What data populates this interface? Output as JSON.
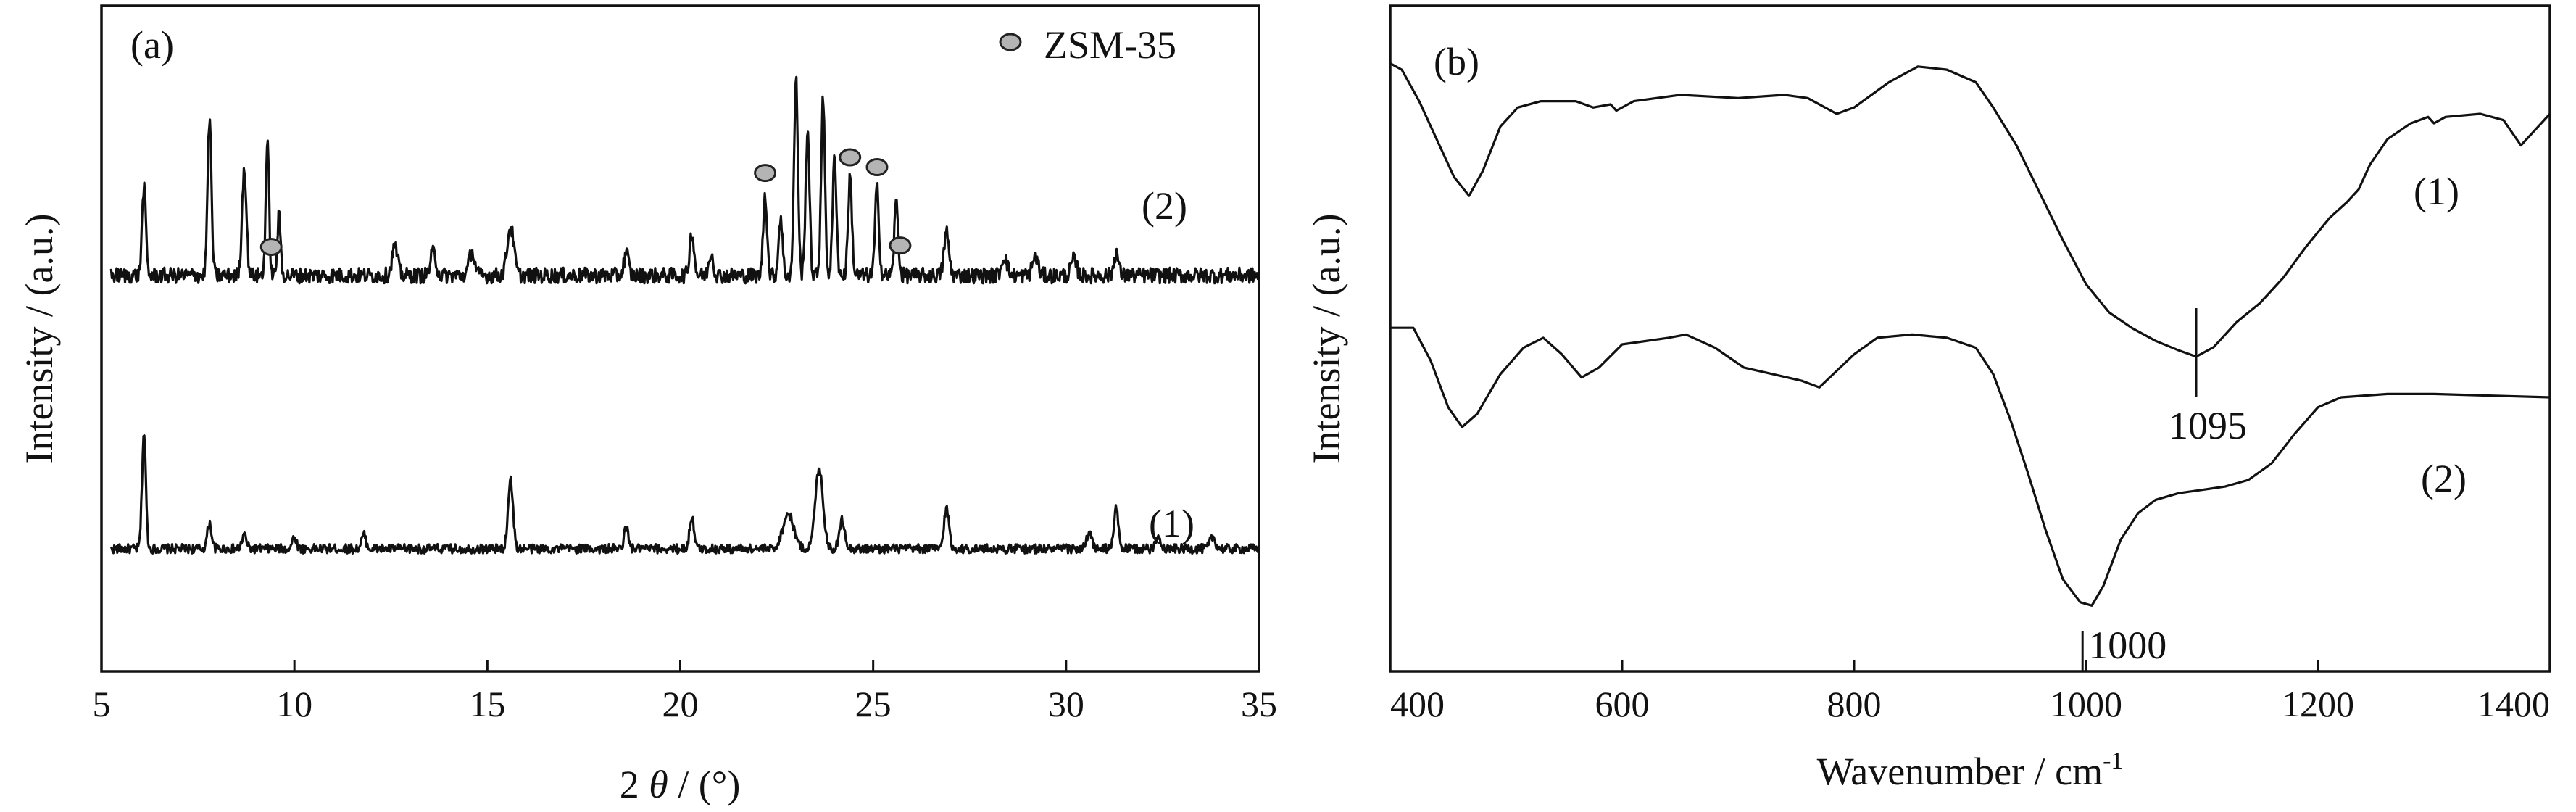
{
  "chart_data": [
    {
      "type": "line",
      "panel_label": "(a)",
      "xlabel_prefix": "2 ",
      "xlabel_symbol": "θ",
      "xlabel_suffix": " / (°)",
      "ylabel": "Intensity / (a.u.)",
      "xlim": [
        5,
        35
      ],
      "xticks": [
        5,
        10,
        15,
        20,
        25,
        30,
        35
      ],
      "legend": {
        "marker": "gray-circle",
        "label": "ZSM-35",
        "position": "top-right"
      },
      "marker_color": "#b4b4b4",
      "marker_positions": [
        9.4,
        22.2,
        24.4,
        25.1,
        25.7
      ],
      "series": [
        {
          "label": "(1)",
          "offset": 0,
          "peaks": [
            [
              6.1,
              1.0,
              0.07
            ],
            [
              7.8,
              0.22,
              0.08
            ],
            [
              8.7,
              0.12,
              0.08
            ],
            [
              10.0,
              0.1,
              0.08
            ],
            [
              11.8,
              0.12,
              0.08
            ],
            [
              15.6,
              0.6,
              0.09
            ],
            [
              18.6,
              0.18,
              0.08
            ],
            [
              20.3,
              0.28,
              0.08
            ],
            [
              22.8,
              0.3,
              0.2
            ],
            [
              23.6,
              0.7,
              0.14
            ],
            [
              24.2,
              0.25,
              0.1
            ],
            [
              26.9,
              0.35,
              0.09
            ],
            [
              30.6,
              0.12,
              0.1
            ],
            [
              31.3,
              0.35,
              0.08
            ],
            [
              32.4,
              0.1,
              0.1
            ],
            [
              33.8,
              0.1,
              0.1
            ]
          ]
        },
        {
          "label": "(2)",
          "offset": 1,
          "peaks": [
            [
              6.1,
              0.45,
              0.07
            ],
            [
              7.8,
              0.8,
              0.07
            ],
            [
              8.7,
              0.55,
              0.08
            ],
            [
              9.3,
              0.68,
              0.06
            ],
            [
              9.6,
              0.3,
              0.06
            ],
            [
              12.6,
              0.15,
              0.1
            ],
            [
              13.6,
              0.12,
              0.1
            ],
            [
              14.6,
              0.12,
              0.1
            ],
            [
              15.6,
              0.25,
              0.12
            ],
            [
              18.6,
              0.12,
              0.08
            ],
            [
              20.3,
              0.22,
              0.08
            ],
            [
              20.8,
              0.12,
              0.08
            ],
            [
              22.2,
              0.42,
              0.07
            ],
            [
              22.6,
              0.3,
              0.07
            ],
            [
              23.0,
              1.0,
              0.07
            ],
            [
              23.3,
              0.75,
              0.07
            ],
            [
              23.7,
              0.9,
              0.07
            ],
            [
              24.0,
              0.6,
              0.07
            ],
            [
              24.4,
              0.5,
              0.07
            ],
            [
              25.1,
              0.45,
              0.07
            ],
            [
              25.6,
              0.38,
              0.07
            ],
            [
              26.9,
              0.22,
              0.09
            ],
            [
              28.4,
              0.1,
              0.1
            ],
            [
              29.2,
              0.1,
              0.1
            ],
            [
              30.2,
              0.08,
              0.1
            ],
            [
              31.3,
              0.12,
              0.08
            ]
          ]
        }
      ]
    },
    {
      "type": "line",
      "panel_label": "(b)",
      "xlabel_main": "Wavenumber / cm",
      "xlabel_sup": "-1",
      "ylabel": "Intensity / (a.u.)",
      "xlim": [
        400,
        1400
      ],
      "xticks": [
        400,
        600,
        800,
        1000,
        1200,
        1400
      ],
      "series": [
        {
          "label": "(1)",
          "annotation": "1095",
          "annotation_x": 1095,
          "points": [
            [
              400,
              0.96
            ],
            [
              410,
              0.94
            ],
            [
              425,
              0.84
            ],
            [
              440,
              0.72
            ],
            [
              455,
              0.6
            ],
            [
              468,
              0.54
            ],
            [
              480,
              0.62
            ],
            [
              495,
              0.76
            ],
            [
              510,
              0.82
            ],
            [
              530,
              0.84
            ],
            [
              560,
              0.84
            ],
            [
              575,
              0.82
            ],
            [
              590,
              0.83
            ],
            [
              595,
              0.81
            ],
            [
              610,
              0.84
            ],
            [
              650,
              0.86
            ],
            [
              700,
              0.85
            ],
            [
              740,
              0.86
            ],
            [
              760,
              0.85
            ],
            [
              785,
              0.8
            ],
            [
              800,
              0.82
            ],
            [
              830,
              0.9
            ],
            [
              855,
              0.95
            ],
            [
              880,
              0.94
            ],
            [
              905,
              0.9
            ],
            [
              920,
              0.82
            ],
            [
              940,
              0.7
            ],
            [
              960,
              0.55
            ],
            [
              980,
              0.4
            ],
            [
              1000,
              0.26
            ],
            [
              1020,
              0.17
            ],
            [
              1040,
              0.12
            ],
            [
              1060,
              0.08
            ],
            [
              1080,
              0.05
            ],
            [
              1095,
              0.03
            ],
            [
              1110,
              0.06
            ],
            [
              1130,
              0.14
            ],
            [
              1150,
              0.2
            ],
            [
              1170,
              0.28
            ],
            [
              1190,
              0.38
            ],
            [
              1210,
              0.47
            ],
            [
              1225,
              0.52
            ],
            [
              1235,
              0.56
            ],
            [
              1245,
              0.64
            ],
            [
              1260,
              0.72
            ],
            [
              1280,
              0.77
            ],
            [
              1295,
              0.79
            ],
            [
              1300,
              0.77
            ],
            [
              1310,
              0.79
            ],
            [
              1340,
              0.8
            ],
            [
              1360,
              0.78
            ],
            [
              1375,
              0.7
            ],
            [
              1390,
              0.76
            ],
            [
              1400,
              0.8
            ]
          ]
        },
        {
          "label": "(2)",
          "annotation": "1000",
          "annotation_x": 997,
          "points": [
            [
              400,
              0.96
            ],
            [
              420,
              0.96
            ],
            [
              435,
              0.86
            ],
            [
              450,
              0.72
            ],
            [
              462,
              0.66
            ],
            [
              475,
              0.7
            ],
            [
              495,
              0.82
            ],
            [
              515,
              0.9
            ],
            [
              532,
              0.93
            ],
            [
              548,
              0.88
            ],
            [
              565,
              0.81
            ],
            [
              580,
              0.84
            ],
            [
              600,
              0.91
            ],
            [
              620,
              0.92
            ],
            [
              640,
              0.93
            ],
            [
              655,
              0.94
            ],
            [
              680,
              0.9
            ],
            [
              705,
              0.84
            ],
            [
              730,
              0.82
            ],
            [
              755,
              0.8
            ],
            [
              770,
              0.78
            ],
            [
              785,
              0.83
            ],
            [
              800,
              0.88
            ],
            [
              820,
              0.93
            ],
            [
              850,
              0.94
            ],
            [
              880,
              0.93
            ],
            [
              905,
              0.9
            ],
            [
              920,
              0.82
            ],
            [
              935,
              0.68
            ],
            [
              950,
              0.52
            ],
            [
              965,
              0.35
            ],
            [
              980,
              0.2
            ],
            [
              995,
              0.13
            ],
            [
              1005,
              0.12
            ],
            [
              1015,
              0.18
            ],
            [
              1030,
              0.32
            ],
            [
              1045,
              0.4
            ],
            [
              1060,
              0.44
            ],
            [
              1080,
              0.46
            ],
            [
              1100,
              0.47
            ],
            [
              1120,
              0.48
            ],
            [
              1140,
              0.5
            ],
            [
              1160,
              0.55
            ],
            [
              1180,
              0.64
            ],
            [
              1200,
              0.72
            ],
            [
              1220,
              0.75
            ],
            [
              1260,
              0.76
            ],
            [
              1300,
              0.76
            ],
            [
              1350,
              0.755
            ],
            [
              1400,
              0.75
            ]
          ]
        }
      ]
    }
  ]
}
